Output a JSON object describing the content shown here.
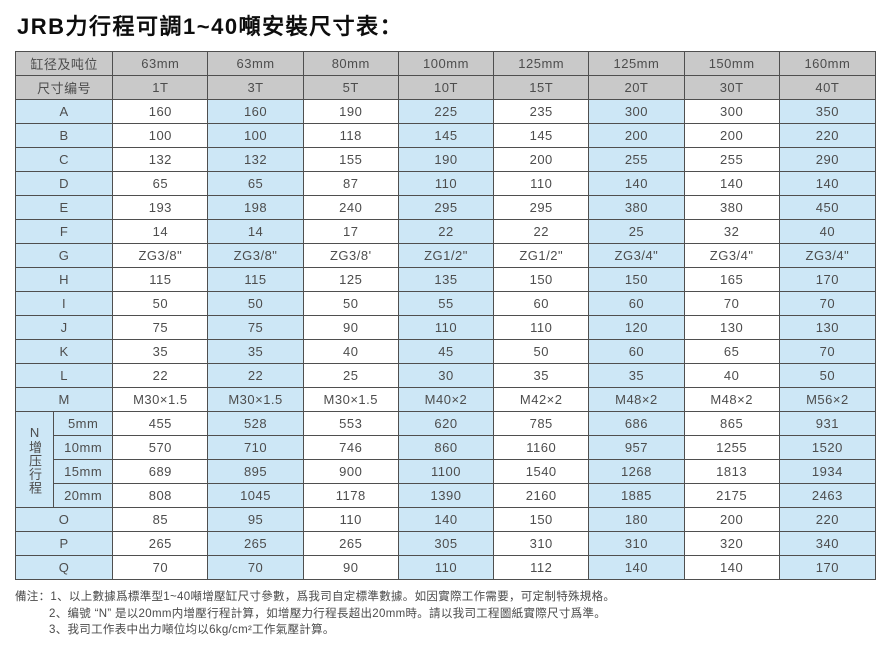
{
  "title": "JRB力行程可調1~40噸安裝尺寸表：",
  "colors": {
    "header_gray": "#c9c9c9",
    "stripe_blue": "#cde7f6",
    "border": "#4f4f4f",
    "text": "#4d4d4d"
  },
  "table": {
    "header": {
      "row1_label": "缸径及吨位",
      "row1_values": [
        "63mm",
        "63mm",
        "80mm",
        "100mm",
        "125mm",
        "125mm",
        "150mm",
        "160mm"
      ],
      "row2_label": "尺寸编号",
      "row2_values": [
        "1T",
        "3T",
        "5T",
        "10T",
        "15T",
        "20T",
        "30T",
        "40T"
      ]
    },
    "rows": [
      {
        "label": "A",
        "values": [
          "160",
          "160",
          "190",
          "225",
          "235",
          "300",
          "300",
          "350"
        ]
      },
      {
        "label": "B",
        "values": [
          "100",
          "100",
          "118",
          "145",
          "145",
          "200",
          "200",
          "220"
        ]
      },
      {
        "label": "C",
        "values": [
          "132",
          "132",
          "155",
          "190",
          "200",
          "255",
          "255",
          "290"
        ]
      },
      {
        "label": "D",
        "values": [
          "65",
          "65",
          "87",
          "110",
          "110",
          "140",
          "140",
          "140"
        ]
      },
      {
        "label": "E",
        "values": [
          "193",
          "198",
          "240",
          "295",
          "295",
          "380",
          "380",
          "450"
        ]
      },
      {
        "label": "F",
        "values": [
          "14",
          "14",
          "17",
          "22",
          "22",
          "25",
          "32",
          "40"
        ]
      },
      {
        "label": "G",
        "values": [
          "ZG3/8\"",
          "ZG3/8\"",
          "ZG3/8'",
          "ZG1/2\"",
          "ZG1/2\"",
          "ZG3/4\"",
          "ZG3/4\"",
          "ZG3/4\""
        ]
      },
      {
        "label": "H",
        "values": [
          "115",
          "115",
          "125",
          "135",
          "150",
          "150",
          "165",
          "170"
        ]
      },
      {
        "label": "I",
        "values": [
          "50",
          "50",
          "50",
          "55",
          "60",
          "60",
          "70",
          "70"
        ]
      },
      {
        "label": "J",
        "values": [
          "75",
          "75",
          "90",
          "110",
          "110",
          "120",
          "130",
          "130"
        ]
      },
      {
        "label": "K",
        "values": [
          "35",
          "35",
          "40",
          "45",
          "50",
          "60",
          "65",
          "70"
        ]
      },
      {
        "label": "L",
        "values": [
          "22",
          "22",
          "25",
          "30",
          "35",
          "35",
          "40",
          "50"
        ]
      },
      {
        "label": "M",
        "values": [
          "M30×1.5",
          "M30×1.5",
          "M30×1.5",
          "M40×2",
          "M42×2",
          "M48×2",
          "M48×2",
          "M56×2"
        ]
      }
    ],
    "n_section": {
      "group_label": "N增压行程",
      "rows": [
        {
          "label": "5mm",
          "values": [
            "455",
            "528",
            "553",
            "620",
            "785",
            "686",
            "865",
            "931"
          ]
        },
        {
          "label": "10mm",
          "values": [
            "570",
            "710",
            "746",
            "860",
            "1160",
            "957",
            "1255",
            "1520"
          ]
        },
        {
          "label": "15mm",
          "values": [
            "689",
            "895",
            "900",
            "1100",
            "1540",
            "1268",
            "1813",
            "1934"
          ]
        },
        {
          "label": "20mm",
          "values": [
            "808",
            "1045",
            "1178",
            "1390",
            "2160",
            "1885",
            "2175",
            "2463"
          ]
        }
      ]
    },
    "bottom_rows": [
      {
        "label": "O",
        "values": [
          "85",
          "95",
          "110",
          "140",
          "150",
          "180",
          "200",
          "220"
        ]
      },
      {
        "label": "P",
        "values": [
          "265",
          "265",
          "265",
          "305",
          "310",
          "310",
          "320",
          "340"
        ]
      },
      {
        "label": "Q",
        "values": [
          "70",
          "70",
          "90",
          "110",
          "112",
          "140",
          "140",
          "170"
        ]
      }
    ]
  },
  "notes": {
    "prefix": "備注：",
    "items": [
      "1、以上數據爲標準型1~40噸增壓缸尺寸參數，爲我司自定標準數據。如因實際工作需要，可定制特殊規格。",
      "2、编號 “N” 是以20mm内增壓行程計算，如增壓力行程長超出20mm時。請以我司工程圖紙實際尺寸爲準。",
      "3、我司工作表中出力噸位均以6kg/cm²工作氣壓計算。"
    ]
  }
}
